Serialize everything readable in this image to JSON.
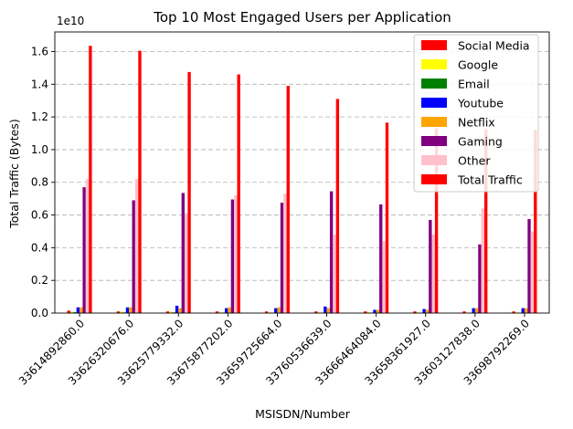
{
  "chart_data": {
    "type": "bar",
    "title": "Top 10 Most Engaged Users per Application",
    "xlabel": "MSISDN/Number",
    "ylabel": "Total Traffic (Bytes)",
    "y_offset_label": "1e10",
    "ylim": [
      0,
      1.72
    ],
    "y_ticks": [
      0.0,
      0.2,
      0.4,
      0.6,
      0.8,
      1.0,
      1.2,
      1.4,
      1.6
    ],
    "y_tick_labels": [
      "0.0",
      "0.2",
      "0.4",
      "0.6",
      "0.8",
      "1.0",
      "1.2",
      "1.4",
      "1.6"
    ],
    "grid": "y-dashed",
    "legend_position": "top-right",
    "categories": [
      "33614892860.0",
      "33626320676.0",
      "33625779332.0",
      "33675877202.0",
      "33659725664.0",
      "33760536639.0",
      "33666464084.0",
      "33658361927.0",
      "33603127838.0",
      "33698792269.0"
    ],
    "series": [
      {
        "name": "Social Media",
        "color": "#ff0000",
        "values": [
          0.015,
          0.01,
          0.01,
          0.01,
          0.01,
          0.01,
          0.01,
          0.01,
          0.01,
          0.01
        ]
      },
      {
        "name": "Google",
        "color": "#ffff00",
        "values": [
          0.008,
          0.008,
          0.008,
          0.005,
          0.005,
          0.005,
          0.005,
          0.004,
          0.004,
          0.004
        ]
      },
      {
        "name": "Email",
        "color": "#008000",
        "values": [
          0.005,
          0.004,
          0.004,
          0.003,
          0.003,
          0.003,
          0.003,
          0.002,
          0.002,
          0.002
        ]
      },
      {
        "name": "Youtube",
        "color": "#0000ff",
        "values": [
          0.035,
          0.035,
          0.045,
          0.03,
          0.03,
          0.04,
          0.02,
          0.025,
          0.03,
          0.03
        ]
      },
      {
        "name": "Netflix",
        "color": "#ffa500",
        "values": [
          0.035,
          0.035,
          0.03,
          0.035,
          0.035,
          0.03,
          0.02,
          0.02,
          0.03,
          0.03
        ]
      },
      {
        "name": "Gaming",
        "color": "#800080",
        "values": [
          0.77,
          0.69,
          0.735,
          0.695,
          0.675,
          0.745,
          0.665,
          0.57,
          0.42,
          0.575
        ]
      },
      {
        "name": "Other",
        "color": "#ffc0cb",
        "values": [
          0.82,
          0.82,
          0.61,
          0.72,
          0.73,
          0.48,
          0.44,
          0.48,
          0.64,
          0.5
        ]
      },
      {
        "name": "Total Traffic",
        "color": "#ff0000",
        "values": [
          1.635,
          1.605,
          1.475,
          1.46,
          1.39,
          1.31,
          1.165,
          1.13,
          1.125,
          1.12
        ]
      }
    ]
  }
}
